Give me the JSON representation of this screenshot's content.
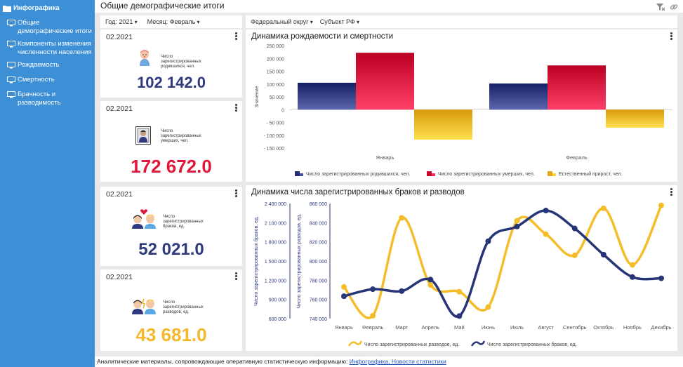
{
  "sidebar": {
    "items": [
      {
        "label": "Инфографика"
      },
      {
        "label": "Общие демографические итоги"
      },
      {
        "label": "Компоненты изменения численности населения"
      },
      {
        "label": "Рождаемость"
      },
      {
        "label": "Смертность"
      },
      {
        "label": "Брачность и разводимость"
      }
    ]
  },
  "header": {
    "title": "Общие демографические итоги"
  },
  "filters_left": {
    "year": "Год: 2021",
    "month": "Месяц: Февраль"
  },
  "filters_right": {
    "district": "Федеральный округ",
    "subject": "Субъект РФ"
  },
  "cards": [
    {
      "date": "02.2021",
      "label": "Число зарегистрированных родившихся, чел.",
      "value": "102 142.0",
      "color": "#2f3a7e"
    },
    {
      "date": "02.2021",
      "label": "Число зарегистрированных умерших, чел.",
      "value": "172 672.0",
      "color": "#e0173a"
    },
    {
      "date": "02.2021",
      "label": "Число зарегистрированных браков, ед.",
      "value": "52 021.0",
      "color": "#2f3a7e"
    },
    {
      "date": "02.2021",
      "label": "Число зарегистрированных разводов, ед.",
      "value": "43 681.0",
      "color": "#f5b82a"
    }
  ],
  "chart1_title": "Динамика рождаемости и смертности",
  "chart2_title": "Динамика числа зарегистрированных браков и разводов",
  "footer": {
    "text": "Аналитические материалы, сопровождающие оперативную статистическую информацию: ",
    "link": "Инфографика, Новости статистики"
  },
  "chart_data": [
    {
      "type": "bar",
      "title": "Динамика рождаемости и смертности",
      "categories": [
        "Январь",
        "Февраль"
      ],
      "ylabel": "Значение",
      "ylim": [
        -150000,
        250000
      ],
      "yticks": [
        250000,
        200000,
        150000,
        100000,
        50000,
        0,
        -50000,
        -100000,
        -150000
      ],
      "ytick_labels": [
        "250 000",
        "200 000",
        "150 000",
        "100 000",
        "50 000",
        "0",
        "- 50 000",
        "- 100 000",
        "- 150 000"
      ],
      "legend_position": "bottom",
      "series": [
        {
          "name": "Число зарегистрированных родившихся, чел.",
          "values": [
            105000,
            102142
          ],
          "color": "#2f3a7e"
        },
        {
          "name": "Число зарегистрированных умерших, чел.",
          "values": [
            222000,
            172672
          ],
          "color": "#d4133b"
        },
        {
          "name": "Естественный прирост, чел.",
          "values": [
            -117000,
            -70530
          ],
          "color": "#f0b323"
        }
      ]
    },
    {
      "type": "line",
      "title": "Динамика числа зарегистрированных браков и разводов",
      "categories": [
        "Январь",
        "Февраль",
        "Март",
        "Апрель",
        "Май",
        "Июнь",
        "Июль",
        "Август",
        "Сентябрь",
        "Октябрь",
        "Ноябрь",
        "Декабрь"
      ],
      "y_left": {
        "label": "Число зарегистрированных браков, ед.",
        "range": [
          600000,
          2400000
        ],
        "ticks": [
          600000,
          900000,
          1200000,
          1500000,
          1800000,
          2100000,
          2400000
        ],
        "tick_labels": [
          "600 000",
          "900 000",
          "1 200 000",
          "1 500 000",
          "1 800 000",
          "2 100 000",
          "2 400 000"
        ]
      },
      "y_right": {
        "label": "Число зарегистрированных разводов, ед.",
        "range": [
          740000,
          860000
        ],
        "ticks": [
          740000,
          760000,
          780000,
          800000,
          820000,
          840000,
          860000
        ],
        "tick_labels": [
          "740 000",
          "760 000",
          "780 000",
          "800 000",
          "820 000",
          "840 000",
          "860 000"
        ]
      },
      "legend_position": "bottom",
      "series": [
        {
          "name": "Число зарегистрированных разводов, ед.",
          "axis": "right",
          "values": [
            773000,
            743000,
            845000,
            775000,
            768000,
            752000,
            842000,
            828000,
            806000,
            855000,
            796000,
            858000
          ],
          "color": "#f5bd2a"
        },
        {
          "name": "Число зарегистрированных браков, ед.",
          "axis": "left",
          "values": [
            950000,
            1060000,
            1030000,
            1210000,
            640000,
            1810000,
            2040000,
            2290000,
            2010000,
            1600000,
            1250000,
            1230000
          ],
          "color": "#263575"
        }
      ]
    }
  ]
}
